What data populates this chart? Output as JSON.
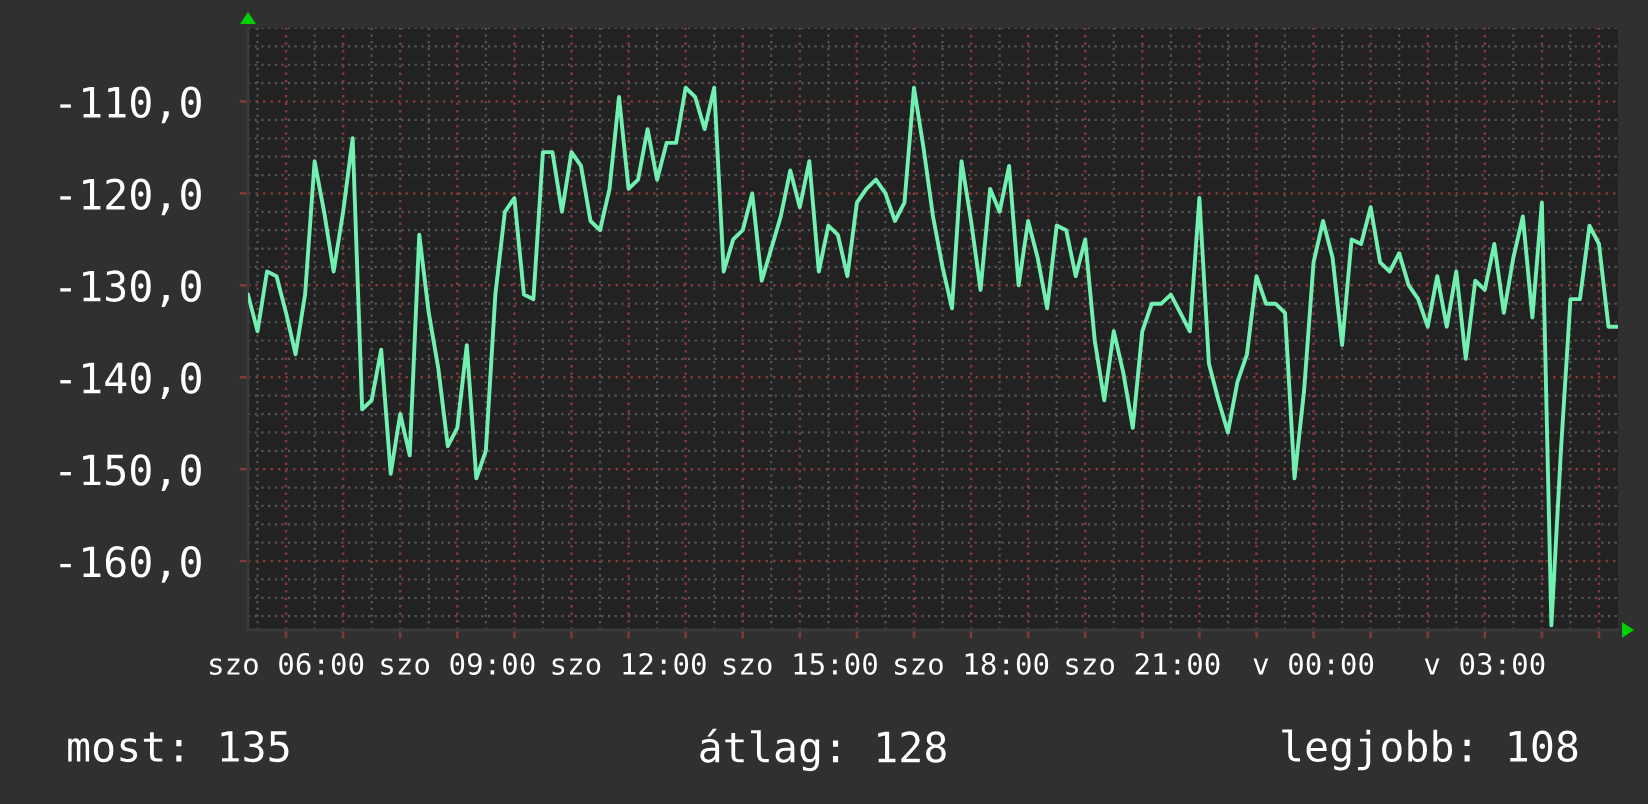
{
  "chart_data": {
    "type": "line",
    "color": "#72f0b2",
    "grid": true,
    "ylim": [
      -167.5,
      -102
    ],
    "yticks": [
      {
        "value": -160,
        "label": "-160,0"
      },
      {
        "value": -150,
        "label": "-150,0"
      },
      {
        "value": -140,
        "label": "-140,0"
      },
      {
        "value": -130,
        "label": "-130,0"
      },
      {
        "value": -120,
        "label": "-120,0"
      },
      {
        "value": -110,
        "label": "-110,0"
      }
    ],
    "categories": [
      null,
      null,
      null,
      null,
      "szo 06:00",
      null,
      null,
      null,
      null,
      null,
      null,
      null,
      null,
      null,
      null,
      null,
      null,
      null,
      null,
      null,
      null,
      null,
      "szo 09:00",
      null,
      null,
      null,
      null,
      null,
      null,
      null,
      null,
      null,
      null,
      null,
      null,
      null,
      null,
      null,
      null,
      null,
      "szo 12:00",
      null,
      null,
      null,
      null,
      null,
      null,
      null,
      null,
      null,
      null,
      null,
      null,
      null,
      null,
      null,
      null,
      null,
      "szo 15:00",
      null,
      null,
      null,
      null,
      null,
      null,
      null,
      null,
      null,
      null,
      null,
      null,
      null,
      null,
      null,
      null,
      null,
      "szo 18:00",
      null,
      null,
      null,
      null,
      null,
      null,
      null,
      null,
      null,
      null,
      null,
      null,
      null,
      null,
      null,
      null,
      null,
      "szo 21:00",
      null,
      null,
      null,
      null,
      null,
      null,
      null,
      null,
      null,
      null,
      null,
      null,
      null,
      null,
      null,
      null,
      null,
      "v 00:00",
      null,
      null,
      null,
      null,
      null,
      null,
      null,
      null,
      null,
      null,
      null,
      null,
      null,
      null,
      null,
      null,
      null,
      "v 03:00",
      null,
      null,
      null,
      null,
      null,
      null,
      null,
      null,
      null,
      null,
      null,
      null,
      null,
      null
    ],
    "values": [
      -131,
      -135,
      -128.5,
      -129,
      -133,
      -137.5,
      -131,
      -116.5,
      -122,
      -128.5,
      -122,
      -114,
      -143.5,
      -142.5,
      -137,
      -150.5,
      -144,
      -148.5,
      -124.5,
      -133,
      -139,
      -147.5,
      -145.5,
      -136.5,
      -151,
      -148,
      -131,
      -122,
      -120.5,
      -131,
      -131.5,
      -115.5,
      -115.5,
      -122,
      -115.5,
      -117,
      -123,
      -124,
      -119.5,
      -109.5,
      -119.5,
      -118.5,
      -113,
      -118.5,
      -114.5,
      -114.5,
      -108.5,
      -109.5,
      -113,
      -108.5,
      -128.5,
      -125,
      -124,
      -120,
      -129.5,
      -126,
      -122.5,
      -117.5,
      -121.5,
      -116.5,
      -128.5,
      -123.5,
      -124.5,
      -129,
      -121,
      -119.5,
      -118.5,
      -120,
      -123,
      -121,
      -108.5,
      -115,
      -122.5,
      -128,
      -132.5,
      -116.5,
      -123,
      -130.5,
      -119.5,
      -122,
      -117,
      -130,
      -123,
      -127,
      -132.5,
      -123.5,
      -124,
      -129,
      -125,
      -136,
      -142.5,
      -135,
      -139.5,
      -145.5,
      -135,
      -132,
      -132,
      -131,
      -133,
      -135,
      -120.5,
      -138.5,
      -142.5,
      -146,
      -140.5,
      -137.5,
      -129,
      -132,
      -132,
      -133,
      -151,
      -141.5,
      -127.5,
      -123,
      -127,
      -136.5,
      -125,
      -125.5,
      -121.5,
      -127.5,
      -128.5,
      -126.5,
      -130,
      -131.5,
      -134.5,
      -129,
      -134.5,
      -128.5,
      -138,
      -129.5,
      -130.5,
      -125.5,
      -133,
      -127,
      -122.5,
      -133.5,
      -121,
      -167,
      -148,
      -131.5,
      -131.5,
      -123.5,
      -125.5,
      -134.5,
      -134.5
    ],
    "annotations": [
      "most: 135",
      "átlag: 128",
      "legjobb: 108"
    ]
  }
}
